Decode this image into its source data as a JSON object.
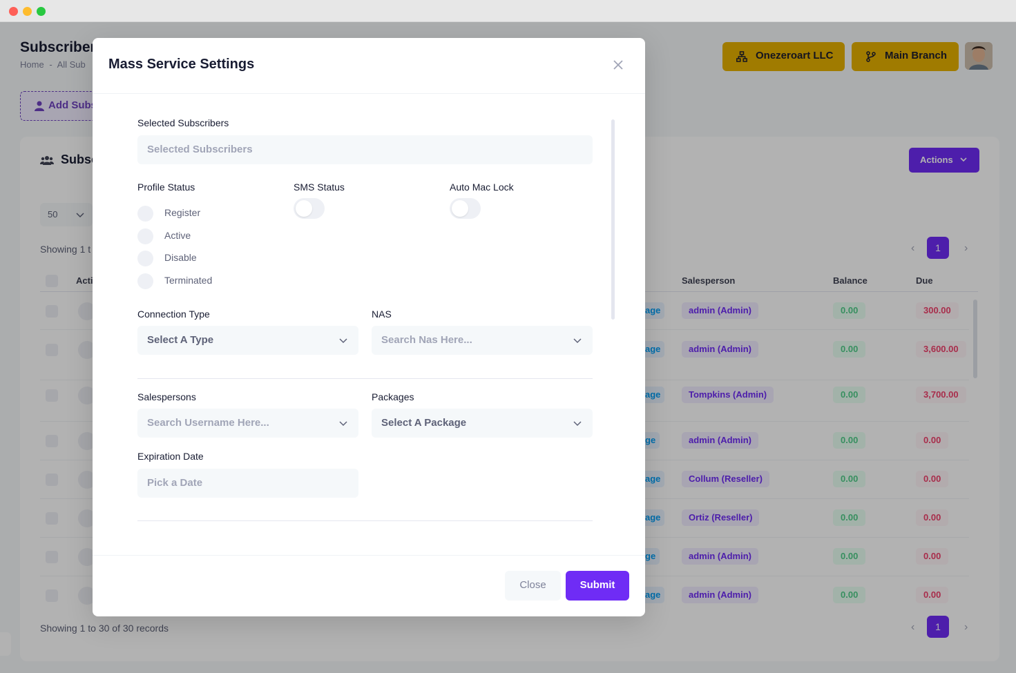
{
  "page": {
    "title": "Subscriber",
    "breadcrumb": [
      "Home",
      "-",
      "All Sub"
    ],
    "add_button": "Add Subs",
    "org_button": "Onezeroart LLC",
    "branch_button": "Main Branch"
  },
  "card": {
    "title": "Subsc",
    "actions_label": "Actions",
    "per_page": "50",
    "showing_top": "Showing 1 t",
    "showing_bottom": "Showing 1 to 30 of 30 records",
    "current_page": "1",
    "columns": {
      "action": "Acti",
      "salesperson": "Salesperson",
      "balance": "Balance",
      "due": "Due"
    },
    "rows": [
      {
        "package": "age",
        "salesperson": "admin (Admin)",
        "balance": "0.00",
        "due": "300.00"
      },
      {
        "package": "age",
        "salesperson": "admin (Admin)",
        "balance": "0.00",
        "due": "3,600.00"
      },
      {
        "package": "age",
        "salesperson": "Tompkins (Admin)",
        "balance": "0.00",
        "due": "3,700.00"
      },
      {
        "package": "ge",
        "salesperson": "admin (Admin)",
        "balance": "0.00",
        "due": "0.00"
      },
      {
        "package": "age",
        "salesperson": "Collum (Reseller)",
        "balance": "0.00",
        "due": "0.00"
      },
      {
        "package": "age",
        "salesperson": "Ortiz (Reseller)",
        "balance": "0.00",
        "due": "0.00"
      },
      {
        "package": "ge",
        "salesperson": "admin (Admin)",
        "balance": "0.00",
        "due": "0.00"
      },
      {
        "package": "age",
        "salesperson": "admin (Admin)",
        "balance": "0.00",
        "due": "0.00"
      }
    ]
  },
  "modal": {
    "title": "Mass Service Settings",
    "selected_subscribers_label": "Selected Subscribers",
    "selected_subscribers_placeholder": "Selected Subscribers",
    "profile_status_label": "Profile Status",
    "profile_status_options": [
      "Register",
      "Active",
      "Disable",
      "Terminated"
    ],
    "sms_status_label": "SMS Status",
    "auto_mac_lock_label": "Auto Mac Lock",
    "connection_type_label": "Connection Type",
    "connection_type_value": "Select A Type",
    "nas_label": "NAS",
    "nas_placeholder": "Search Nas Here...",
    "salespersons_label": "Salespersons",
    "salespersons_placeholder": "Search Username Here...",
    "packages_label": "Packages",
    "packages_value": "Select A Package",
    "expiration_label": "Expiration Date",
    "expiration_placeholder": "Pick a Date",
    "close_label": "Close",
    "submit_label": "Submit"
  },
  "colors": {
    "accent": "#6f2cf5",
    "warning": "#e6b100"
  }
}
